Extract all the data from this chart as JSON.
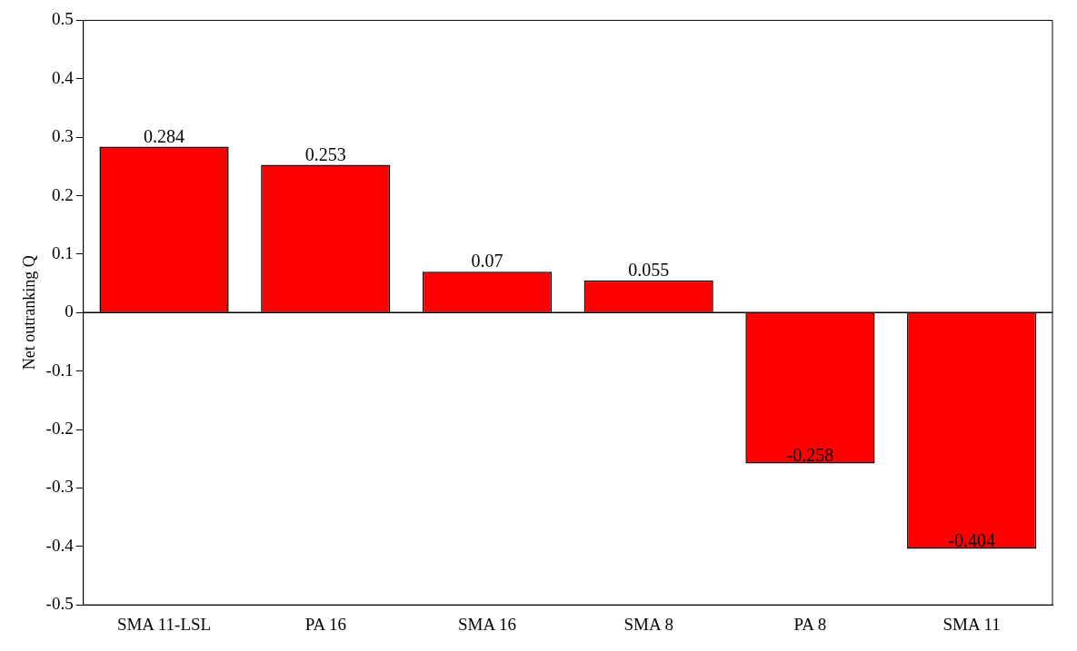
{
  "chart_data": {
    "type": "bar",
    "ylabel": "Net outranking Q",
    "categories": [
      "SMA 11-LSL",
      "PA 16",
      "SMA 16",
      "SMA 8",
      "PA 8",
      "SMA 11"
    ],
    "values": [
      0.284,
      0.253,
      0.07,
      0.055,
      -0.258,
      -0.404
    ],
    "color": "#ff0000",
    "ylim": [
      -0.5,
      0.5
    ],
    "yticks": [
      -0.5,
      -0.4,
      -0.3,
      -0.2,
      -0.1,
      0,
      0.1,
      0.2,
      0.3,
      0.4,
      0.5
    ],
    "ref_lines": [
      {
        "axis": "y",
        "value": 0,
        "color": "#000000"
      }
    ],
    "data_labels": true,
    "grid": false,
    "legend": false
  }
}
